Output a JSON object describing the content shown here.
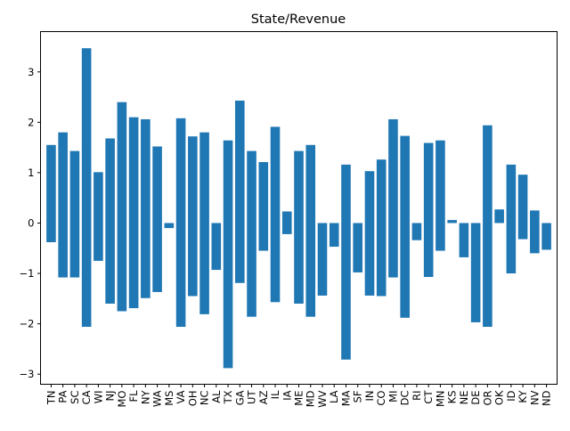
{
  "chart_data": {
    "type": "bar",
    "title": "State/Revenue",
    "xlabel": "",
    "ylabel": "",
    "categories": [
      "TN",
      "PA",
      "SC",
      "CA",
      "WI",
      "NJ",
      "MO",
      "FL",
      "NY",
      "WA",
      "MS",
      "VA",
      "OH",
      "NC",
      "AL",
      "TX",
      "GA",
      "UT",
      "AZ",
      "IL",
      "IA",
      "ME",
      "MD",
      "WV",
      "LA",
      "MA",
      "SF",
      "IN",
      "CO",
      "MI",
      "DC",
      "RI",
      "CT",
      "MN",
      "KS",
      "NE",
      "DE",
      "OR",
      "OK",
      "ID",
      "KY",
      "NV",
      "ND"
    ],
    "bars": [
      {
        "bottom": -0.38,
        "top": 1.55
      },
      {
        "bottom": -1.08,
        "top": 1.8
      },
      {
        "bottom": -1.08,
        "top": 1.43
      },
      {
        "bottom": -2.06,
        "top": 3.47
      },
      {
        "bottom": -0.75,
        "top": 1.01
      },
      {
        "bottom": -1.6,
        "top": 1.68
      },
      {
        "bottom": -1.75,
        "top": 2.4
      },
      {
        "bottom": -1.69,
        "top": 2.1
      },
      {
        "bottom": -1.49,
        "top": 2.06
      },
      {
        "bottom": -1.37,
        "top": 1.52
      },
      {
        "bottom": -0.1,
        "top": 0.0
      },
      {
        "bottom": -2.06,
        "top": 2.08
      },
      {
        "bottom": -1.45,
        "top": 1.72
      },
      {
        "bottom": -1.81,
        "top": 1.8
      },
      {
        "bottom": -0.93,
        "top": 0.0
      },
      {
        "bottom": -2.88,
        "top": 1.64
      },
      {
        "bottom": -1.19,
        "top": 2.43
      },
      {
        "bottom": -1.86,
        "top": 1.43
      },
      {
        "bottom": -0.55,
        "top": 1.21
      },
      {
        "bottom": -1.57,
        "top": 1.91
      },
      {
        "bottom": -0.22,
        "top": 0.23
      },
      {
        "bottom": -1.6,
        "top": 1.43
      },
      {
        "bottom": -1.86,
        "top": 1.55
      },
      {
        "bottom": -1.44,
        "top": 0.0
      },
      {
        "bottom": -0.47,
        "top": 0.0
      },
      {
        "bottom": -2.71,
        "top": 1.16
      },
      {
        "bottom": -0.98,
        "top": 0.0
      },
      {
        "bottom": -1.44,
        "top": 1.03
      },
      {
        "bottom": -1.45,
        "top": 1.26
      },
      {
        "bottom": -1.08,
        "top": 2.06
      },
      {
        "bottom": -1.88,
        "top": 1.73
      },
      {
        "bottom": -0.34,
        "top": 0.0
      },
      {
        "bottom": -1.07,
        "top": 1.59
      },
      {
        "bottom": -0.55,
        "top": 1.64
      },
      {
        "bottom": 0.0,
        "top": 0.06
      },
      {
        "bottom": -0.68,
        "top": 0.0
      },
      {
        "bottom": -1.97,
        "top": 0.0
      },
      {
        "bottom": -2.06,
        "top": 1.94
      },
      {
        "bottom": 0.0,
        "top": 0.27
      },
      {
        "bottom": -1.0,
        "top": 1.16
      },
      {
        "bottom": -0.32,
        "top": 0.96
      },
      {
        "bottom": -0.6,
        "top": 0.25
      },
      {
        "bottom": -0.53,
        "top": 0.0
      }
    ],
    "ylim": [
      -3.2,
      3.8
    ],
    "yticks": [
      -3,
      -2,
      -1,
      0,
      1,
      2,
      3
    ],
    "ytick_labels": [
      "−3",
      "−2",
      "−1",
      "0",
      "1",
      "2",
      "3"
    ],
    "bar_color": "#1f77b4",
    "grid": false,
    "legend": false
  }
}
